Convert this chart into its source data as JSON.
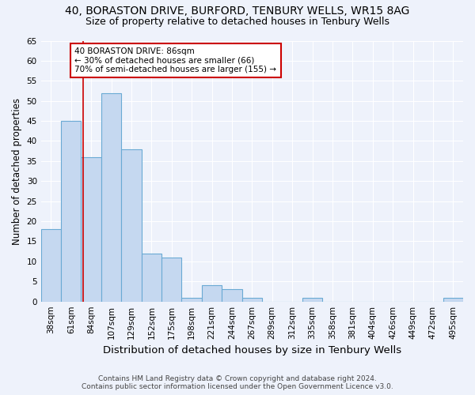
{
  "title1": "40, BORASTON DRIVE, BURFORD, TENBURY WELLS, WR15 8AG",
  "title2": "Size of property relative to detached houses in Tenbury Wells",
  "xlabel": "Distribution of detached houses by size in Tenbury Wells",
  "ylabel": "Number of detached properties",
  "footnote1": "Contains HM Land Registry data © Crown copyright and database right 2024.",
  "footnote2": "Contains public sector information licensed under the Open Government Licence v3.0.",
  "categories": [
    "38sqm",
    "61sqm",
    "84sqm",
    "107sqm",
    "129sqm",
    "152sqm",
    "175sqm",
    "198sqm",
    "221sqm",
    "244sqm",
    "267sqm",
    "289sqm",
    "312sqm",
    "335sqm",
    "358sqm",
    "381sqm",
    "404sqm",
    "426sqm",
    "449sqm",
    "472sqm",
    "495sqm"
  ],
  "values": [
    18,
    45,
    36,
    52,
    38,
    12,
    11,
    1,
    4,
    3,
    1,
    0,
    0,
    1,
    0,
    0,
    0,
    0,
    0,
    0,
    1
  ],
  "bar_color": "#c5d8f0",
  "bar_edge_color": "#6aaad4",
  "bar_linewidth": 0.8,
  "property_line_color": "#cc0000",
  "annotation_text": "40 BORASTON DRIVE: 86sqm\n← 30% of detached houses are smaller (66)\n70% of semi-detached houses are larger (155) →",
  "annotation_box_color": "#ffffff",
  "annotation_box_edge": "#cc0000",
  "ylim": [
    0,
    65
  ],
  "yticks": [
    0,
    5,
    10,
    15,
    20,
    25,
    30,
    35,
    40,
    45,
    50,
    55,
    60,
    65
  ],
  "bg_color": "#eef2fb",
  "grid_color": "#ffffff",
  "title1_fontsize": 10,
  "title2_fontsize": 9,
  "xlabel_fontsize": 9.5,
  "ylabel_fontsize": 8.5,
  "tick_fontsize": 7.5,
  "annotation_fontsize": 7.5,
  "footnote_fontsize": 6.5
}
